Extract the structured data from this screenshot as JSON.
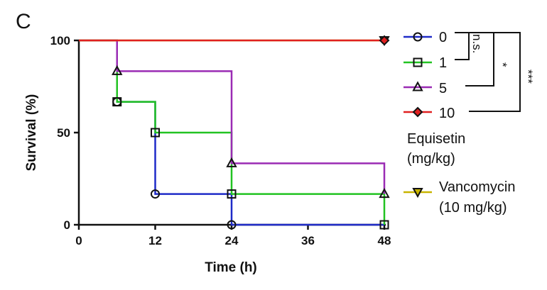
{
  "panel_label": "C",
  "chart_data": {
    "type": "line",
    "style": "step (Kaplan-Meier survival)",
    "xlabel": "Time (h)",
    "ylabel": "Survival (%)",
    "xlim": [
      0,
      48
    ],
    "ylim": [
      0,
      100
    ],
    "x_ticks": [
      0,
      12,
      24,
      36,
      48
    ],
    "y_ticks": [
      0,
      50,
      100
    ],
    "grid": false,
    "legend_position": "right",
    "legend_group_title": "Equisetin (mg/kg)",
    "series": [
      {
        "name": "0",
        "color": "#1f2bc8",
        "marker": "circle",
        "steps": [
          [
            0,
            100
          ],
          [
            6,
            66.7
          ],
          [
            12,
            16.7
          ],
          [
            24,
            0
          ],
          [
            48,
            0
          ]
        ],
        "markers": [
          [
            6,
            66.7
          ],
          [
            12,
            16.7
          ],
          [
            24,
            0
          ]
        ]
      },
      {
        "name": "1",
        "color": "#22c322",
        "marker": "square",
        "steps": [
          [
            0,
            100
          ],
          [
            6,
            66.7
          ],
          [
            12,
            50
          ],
          [
            24,
            16.7
          ],
          [
            48,
            0
          ]
        ],
        "markers": [
          [
            6,
            66.7
          ],
          [
            12,
            50
          ],
          [
            24,
            16.7
          ],
          [
            48,
            0
          ]
        ]
      },
      {
        "name": "5",
        "color": "#9a2bb4",
        "marker": "triangle-up",
        "steps": [
          [
            0,
            100
          ],
          [
            6,
            83.3
          ],
          [
            24,
            33.3
          ],
          [
            48,
            16.7
          ]
        ],
        "markers": [
          [
            6,
            83.3
          ],
          [
            24,
            33.3
          ],
          [
            48,
            16.7
          ]
        ]
      },
      {
        "name": "10",
        "color": "#e02020",
        "marker": "diamond",
        "steps": [
          [
            0,
            100
          ],
          [
            48,
            100
          ]
        ],
        "markers": [
          [
            48,
            100
          ]
        ]
      },
      {
        "name": "Vancomycin (10 mg/kg)",
        "color": "#c8b400",
        "marker": "triangle-down",
        "steps": [
          [
            0,
            100
          ],
          [
            48,
            100
          ]
        ],
        "markers": [
          [
            48,
            100
          ]
        ]
      }
    ],
    "legend_labels": {
      "s0": "0",
      "s1": "1",
      "s5": "5",
      "s10": "10",
      "vanc_line1": "Vancomycin",
      "vanc_line2": "(10 mg/kg)",
      "equisetin_line1": "Equisetin",
      "equisetin_line2": "(mg/kg)"
    },
    "significance": [
      {
        "compare": [
          "0",
          "1"
        ],
        "label": "n.s."
      },
      {
        "compare": [
          "0",
          "5"
        ],
        "label": "*"
      },
      {
        "compare": [
          "0",
          "10"
        ],
        "label": "***"
      }
    ]
  }
}
